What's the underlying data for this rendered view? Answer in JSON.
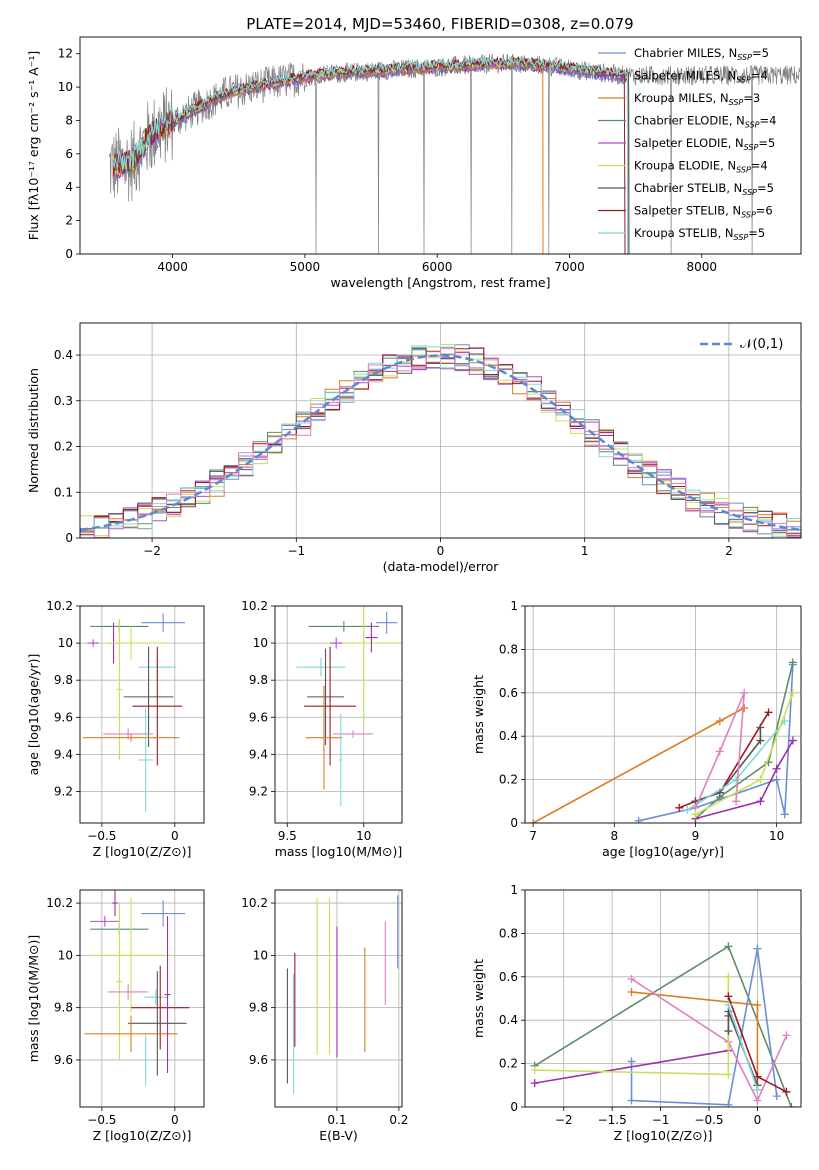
{
  "figure_title": "PLATE=2014, MJD=53460, FIBERID=0308, z=0.079",
  "colors": {
    "Chabrier MILES": "#6a8fd8",
    "Salpeter MILES": "#9b30a8",
    "Kroupa MILES": "#e07b20",
    "Chabrier ELODIE": "#5e8c6a",
    "Salpeter ELODIE": "#b04fd0",
    "Kroupa ELODIE": "#c8e05a",
    "Chabrier STELIB": "#555555",
    "Salpeter STELIB": "#a01820",
    "Kroupa STELIB": "#80d8d8",
    "Pink": "#e080c0",
    "Gaussian": "#5b8ad0",
    "Data": "#808080"
  },
  "chart_data": [
    {
      "id": "spectrum",
      "type": "line",
      "title": "",
      "xlabel": "wavelength [Angstrom, rest frame]",
      "ylabel": "Flux [fλ10⁻¹⁷ erg cm⁻² s⁻¹ A⁻¹]",
      "xlim": [
        3300,
        8750
      ],
      "ylim": [
        0,
        13
      ],
      "xticks": [
        4000,
        5000,
        6000,
        7000,
        8000
      ],
      "yticks": [
        0,
        2,
        4,
        6,
        8,
        10,
        12
      ],
      "legend_position": "right",
      "legend": [
        "Chabrier MILES, N_SSP=5",
        "Salpeter MILES, N_SSP=4",
        "Kroupa MILES, N_SSP=3",
        "Chabrier ELODIE, N_SSP=4",
        "Salpeter ELODIE, N_SSP=5",
        "Kroupa ELODIE, N_SSP=4",
        "Chabrier STELIB, N_SSP=5",
        "Salpeter STELIB, N_SSP=6",
        "Kroupa STELIB, N_SSP=5"
      ],
      "model_shape": {
        "x": [
          3550,
          3700,
          3800,
          3900,
          4000,
          4200,
          4400,
          4600,
          4800,
          5000,
          5200,
          5400,
          5600,
          5800,
          6000,
          6200,
          6400,
          6600,
          6800,
          7000,
          7200,
          7400
        ],
        "y": [
          5.2,
          5.5,
          6.8,
          7.5,
          7.9,
          8.8,
          9.6,
          10.0,
          10.3,
          10.6,
          10.8,
          10.9,
          11.0,
          11.1,
          11.2,
          11.3,
          11.4,
          11.4,
          11.3,
          11.1,
          10.9,
          10.7
        ]
      },
      "model_cutoffs": [
        {
          "series": "Kroupa MILES",
          "x": 6800
        },
        {
          "series": "Salpeter STELIB",
          "x": 7420
        },
        {
          "series": "Kroupa STELIB",
          "x": 7440
        },
        {
          "series": "Chabrier ELODIE",
          "x": 7440
        }
      ]
    },
    {
      "id": "residual_hist",
      "type": "histogram",
      "title": "",
      "xlabel": "(data-model)/error",
      "ylabel": "Normed distribution",
      "xlim": [
        -2.5,
        2.5
      ],
      "ylim": [
        0,
        0.47
      ],
      "xticks": [
        -2,
        -1,
        0,
        1,
        2
      ],
      "yticks": [
        0.0,
        0.1,
        0.2,
        0.3,
        0.4
      ],
      "grid": true,
      "legend": [
        "𝒩(0,1)"
      ],
      "legend_position": "top-right",
      "bin_width": 0.1
    },
    {
      "id": "age_vs_Z",
      "type": "scatter",
      "xlabel": "Z [log10(Z/Z⊙)]",
      "ylabel": "age  [log10(age/yr)]",
      "xlim": [
        -0.65,
        0.2
      ],
      "ylim": [
        9.03,
        10.2
      ],
      "xticks": [
        -0.5,
        0.0
      ],
      "yticks": [
        9.2,
        9.4,
        9.6,
        9.8,
        10.0,
        10.2
      ],
      "grid": true,
      "points": [
        {
          "color": "Chabrier MILES",
          "x": -0.08,
          "y": 10.11,
          "xerr": 0.15,
          "yerr": 0.05
        },
        {
          "color": "Salpeter MILES",
          "x": -0.42,
          "y": 10.0,
          "xerr": 0.03,
          "yerr": 0.11
        },
        {
          "color": "Chabrier ELODIE",
          "x": -0.38,
          "y": 10.09,
          "xerr": 0.2,
          "yerr": 0.03
        },
        {
          "color": "Kroupa ELODIE",
          "x": -0.3,
          "y": 10.0,
          "xerr": 0.26,
          "yerr": 0.09
        },
        {
          "color": "Kroupa ELODIE",
          "x": -0.38,
          "y": 9.75,
          "xerr": 0.02,
          "yerr": 0.38
        },
        {
          "color": "Salpeter ELODIE",
          "x": -0.56,
          "y": 10.0,
          "xerr": 0.04,
          "yerr": 0.02
        },
        {
          "color": "Kroupa STELIB",
          "x": -0.12,
          "y": 9.87,
          "xerr": 0.13,
          "yerr": 0.06
        },
        {
          "color": "Chabrier STELIB",
          "x": -0.18,
          "y": 9.71,
          "xerr": 0.17,
          "yerr": 0.27
        },
        {
          "color": "Salpeter STELIB",
          "x": -0.12,
          "y": 9.66,
          "xerr": 0.17,
          "yerr": 0.32
        },
        {
          "color": "Pink",
          "x": -0.32,
          "y": 9.51,
          "xerr": 0.17,
          "yerr": 0.03
        },
        {
          "color": "Kroupa MILES",
          "x": -0.3,
          "y": 9.49,
          "xerr": 0.33,
          "yerr": 0.02
        },
        {
          "color": "Kroupa STELIB",
          "x": -0.2,
          "y": 9.37,
          "xerr": 0.05,
          "yerr": 0.28
        }
      ]
    },
    {
      "id": "age_vs_mass",
      "type": "scatter",
      "xlabel": "mass [log10(M/M⊙)]",
      "ylabel": "",
      "xlim": [
        9.42,
        10.25
      ],
      "ylim": [
        9.03,
        10.2
      ],
      "xticks": [
        9.5,
        10.0
      ],
      "yticks": [
        9.2,
        9.4,
        9.6,
        9.8,
        10.0,
        10.2
      ],
      "grid": true,
      "points": [
        {
          "color": "Chabrier MILES",
          "x": 10.15,
          "y": 10.11,
          "xerr": 0.07,
          "yerr": 0.06
        },
        {
          "color": "Chabrier ELODIE",
          "x": 9.87,
          "y": 10.09,
          "xerr": 0.23,
          "yerr": 0.03
        },
        {
          "color": "Kroupa ELODIE",
          "x": 10.0,
          "y": 10.0,
          "xerr": 0.25,
          "yerr": 0.45
        },
        {
          "color": "Salpeter ELODIE",
          "x": 9.82,
          "y": 10.0,
          "xerr": 0.04,
          "yerr": 0.03
        },
        {
          "color": "Kroupa STELIB",
          "x": 9.72,
          "y": 9.87,
          "xerr": 0.16,
          "yerr": 0.05
        },
        {
          "color": "Chabrier STELIB",
          "x": 9.75,
          "y": 9.71,
          "xerr": 0.12,
          "yerr": 0.26
        },
        {
          "color": "Salpeter STELIB",
          "x": 9.78,
          "y": 9.66,
          "xerr": 0.17,
          "yerr": 0.32
        },
        {
          "color": "Pink",
          "x": 9.93,
          "y": 9.51,
          "xerr": 0.13,
          "yerr": 0.02
        },
        {
          "color": "Kroupa MILES",
          "x": 9.74,
          "y": 9.49,
          "xerr": 0.12,
          "yerr": 0.28
        },
        {
          "color": "Kroupa STELIB",
          "x": 9.85,
          "y": 9.37,
          "xerr": 0.01,
          "yerr": 0.25
        },
        {
          "color": "Salpeter MILES",
          "x": 10.05,
          "y": 10.03,
          "xerr": 0.04,
          "yerr": 0.08
        }
      ]
    },
    {
      "id": "massweight_vs_age",
      "type": "line",
      "xlabel": "age  [log10(age/yr)]",
      "ylabel": "mass weight",
      "xlim": [
        6.9,
        10.3
      ],
      "ylim": [
        0,
        1.0
      ],
      "xticks": [
        7,
        8,
        9,
        10
      ],
      "yticks": [
        0.0,
        0.2,
        0.4,
        0.6,
        0.8,
        1.0
      ],
      "grid": true,
      "series": [
        {
          "color": "Kroupa MILES",
          "x": [
            7.0,
            9.3,
            9.6
          ],
          "y": [
            0.0,
            0.47,
            0.53
          ]
        },
        {
          "color": "Chabrier MILES",
          "x": [
            8.3,
            9.0,
            10.0,
            10.1,
            10.2
          ],
          "y": [
            0.01,
            0.07,
            0.2,
            0.04,
            0.73
          ]
        },
        {
          "color": "Chabrier ELODIE",
          "x": [
            9.0,
            9.3,
            9.9,
            10.2
          ],
          "y": [
            0.02,
            0.12,
            0.28,
            0.74
          ]
        },
        {
          "color": "Salpeter STELIB",
          "x": [
            8.8,
            9.0,
            9.3,
            9.9
          ],
          "y": [
            0.07,
            0.1,
            0.14,
            0.51
          ]
        },
        {
          "color": "Chabrier STELIB",
          "x": [
            9.0,
            9.3,
            9.8,
            9.8
          ],
          "y": [
            0.1,
            0.14,
            0.38,
            0.44
          ]
        },
        {
          "color": "Kroupa STELIB",
          "x": [
            8.9,
            9.5,
            10.1
          ],
          "y": [
            0.06,
            0.2,
            0.47
          ]
        },
        {
          "color": "Salpeter MILES",
          "x": [
            9.0,
            9.8,
            10.0,
            10.2
          ],
          "y": [
            0.02,
            0.1,
            0.25,
            0.38
          ]
        },
        {
          "color": "Pink",
          "x": [
            9.0,
            9.3,
            9.6,
            9.5
          ],
          "y": [
            0.07,
            0.33,
            0.6,
            0.1
          ]
        },
        {
          "color": "Kroupa ELODIE",
          "x": [
            9.0,
            9.8,
            10.2
          ],
          "y": [
            0.04,
            0.2,
            0.6
          ]
        }
      ]
    },
    {
      "id": "mass_vs_Z",
      "type": "scatter",
      "xlabel": "Z [log10(Z/Z⊙)]",
      "ylabel": "mass [log10(M/M⊙)]",
      "xlim": [
        -0.65,
        0.2
      ],
      "ylim": [
        9.42,
        10.25
      ],
      "xticks": [
        -0.5,
        0.0
      ],
      "yticks": [
        9.6,
        9.8,
        10.0,
        10.2
      ],
      "grid": true,
      "points": [
        {
          "color": "Chabrier MILES",
          "x": -0.08,
          "y": 10.16,
          "xerr": 0.15,
          "yerr": 0.05
        },
        {
          "color": "Salpeter ELODIE",
          "x": -0.48,
          "y": 10.13,
          "xerr": 0.1,
          "yerr": 0.02
        },
        {
          "color": "Salpeter MILES",
          "x": -0.41,
          "y": 10.2,
          "xerr": 0.02,
          "yerr": 0.05
        },
        {
          "color": "Chabrier ELODIE",
          "x": -0.38,
          "y": 10.1,
          "xerr": 0.2,
          "yerr": 0.02
        },
        {
          "color": "Kroupa ELODIE",
          "x": -0.3,
          "y": 10.0,
          "xerr": 0.27,
          "yerr": 0.22
        },
        {
          "color": "Kroupa ELODIE",
          "x": -0.38,
          "y": 9.9,
          "xerr": 0.02,
          "yerr": 0.3
        },
        {
          "color": "Pink",
          "x": -0.32,
          "y": 9.86,
          "xerr": 0.14,
          "yerr": 0.03
        },
        {
          "color": "Kroupa STELIB",
          "x": -0.13,
          "y": 9.84,
          "xerr": 0.08,
          "yerr": 0.03
        },
        {
          "color": "Salpeter STELIB",
          "x": -0.1,
          "y": 9.8,
          "xerr": 0.2,
          "yerr": 0.16
        },
        {
          "color": "Chabrier STELIB",
          "x": -0.12,
          "y": 9.74,
          "xerr": 0.2,
          "yerr": 0.2
        },
        {
          "color": "Kroupa MILES",
          "x": -0.3,
          "y": 9.7,
          "xerr": 0.32,
          "yerr": 0.07
        },
        {
          "color": "Kroupa STELIB",
          "x": -0.2,
          "y": 9.6,
          "xerr": 0.02,
          "yerr": 0.1
        },
        {
          "color": "Salpeter MILES",
          "x": -0.05,
          "y": 9.85,
          "xerr": 0.02,
          "yerr": 0.3
        }
      ]
    },
    {
      "id": "mass_vs_EBV",
      "type": "scatter",
      "xlabel": "E(B-V)",
      "ylabel": "",
      "xlim": [
        0.0,
        0.205
      ],
      "ylim": [
        9.42,
        10.25
      ],
      "xticks": [
        0.1,
        0.2
      ],
      "yticks": [
        9.6,
        9.8,
        10.0,
        10.2
      ],
      "grid": true,
      "points": [
        {
          "color": "Chabrier STELIB",
          "x": 0.02,
          "y": 9.73,
          "xerr": 0.0,
          "yerr": 0.22
        },
        {
          "color": "Kroupa STELIB",
          "x": 0.03,
          "y": 9.7,
          "xerr": 0.0,
          "yerr": 0.23
        },
        {
          "color": "Salpeter STELIB",
          "x": 0.032,
          "y": 9.83,
          "xerr": 0.0,
          "yerr": 0.18
        },
        {
          "color": "Kroupa ELODIE",
          "x": 0.068,
          "y": 9.92,
          "xerr": 0.0,
          "yerr": 0.3
        },
        {
          "color": "Kroupa ELODIE",
          "x": 0.088,
          "y": 9.92,
          "xerr": 0.0,
          "yerr": 0.3
        },
        {
          "color": "Salpeter MILES",
          "x": 0.1,
          "y": 9.86,
          "xerr": 0.0,
          "yerr": 0.25
        },
        {
          "color": "Kroupa MILES",
          "x": 0.145,
          "y": 9.83,
          "xerr": 0.0,
          "yerr": 0.2
        },
        {
          "color": "Pink",
          "x": 0.178,
          "y": 9.97,
          "xerr": 0.0,
          "yerr": 0.16
        },
        {
          "color": "Chabrier MILES",
          "x": 0.198,
          "y": 10.09,
          "xerr": 0.0,
          "yerr": 0.14
        }
      ]
    },
    {
      "id": "massweight_vs_Z",
      "type": "line",
      "xlabel": "Z [log10(Z/Z⊙)]",
      "ylabel": "mass weight",
      "xlim": [
        -2.4,
        0.45
      ],
      "ylim": [
        0,
        1.0
      ],
      "xticks": [
        -2.0,
        -1.5,
        -1.0,
        -0.5,
        0.0
      ],
      "yticks": [
        0.0,
        0.2,
        0.4,
        0.6,
        0.8,
        1.0
      ],
      "grid": true,
      "series": [
        {
          "color": "Chabrier ELODIE",
          "x": [
            -2.3,
            -0.3,
            0.35
          ],
          "y": [
            0.19,
            0.74,
            0.0
          ]
        },
        {
          "color": "Kroupa MILES",
          "x": [
            -1.3,
            0.0,
            0.0
          ],
          "y": [
            0.53,
            0.47,
            0.08
          ]
        },
        {
          "color": "Chabrier MILES",
          "x": [
            -1.3,
            -1.3,
            -0.3,
            0.0,
            0.2
          ],
          "y": [
            0.21,
            0.03,
            0.01,
            0.73,
            0.05
          ]
        },
        {
          "color": "Salpeter MILES",
          "x": [
            -2.3,
            -0.3,
            -0.3
          ],
          "y": [
            0.11,
            0.26,
            0.42
          ]
        },
        {
          "color": "Pink",
          "x": [
            -1.3,
            -0.3,
            0.0,
            0.3
          ],
          "y": [
            0.59,
            0.3,
            0.03,
            0.33
          ]
        },
        {
          "color": "Kroupa ELODIE",
          "x": [
            -2.3,
            -0.3,
            -0.3
          ],
          "y": [
            0.17,
            0.15,
            0.6
          ]
        },
        {
          "color": "Salpeter STELIB",
          "x": [
            -0.3,
            0.0,
            0.3
          ],
          "y": [
            0.51,
            0.14,
            0.07
          ]
        },
        {
          "color": "Chabrier STELIB",
          "x": [
            -0.3,
            -0.3,
            0.0
          ],
          "y": [
            0.35,
            0.44,
            0.1
          ]
        },
        {
          "color": "Kroupa STELIB",
          "x": [
            -0.3,
            0.0
          ],
          "y": [
            0.47,
            0.08
          ]
        }
      ]
    }
  ]
}
